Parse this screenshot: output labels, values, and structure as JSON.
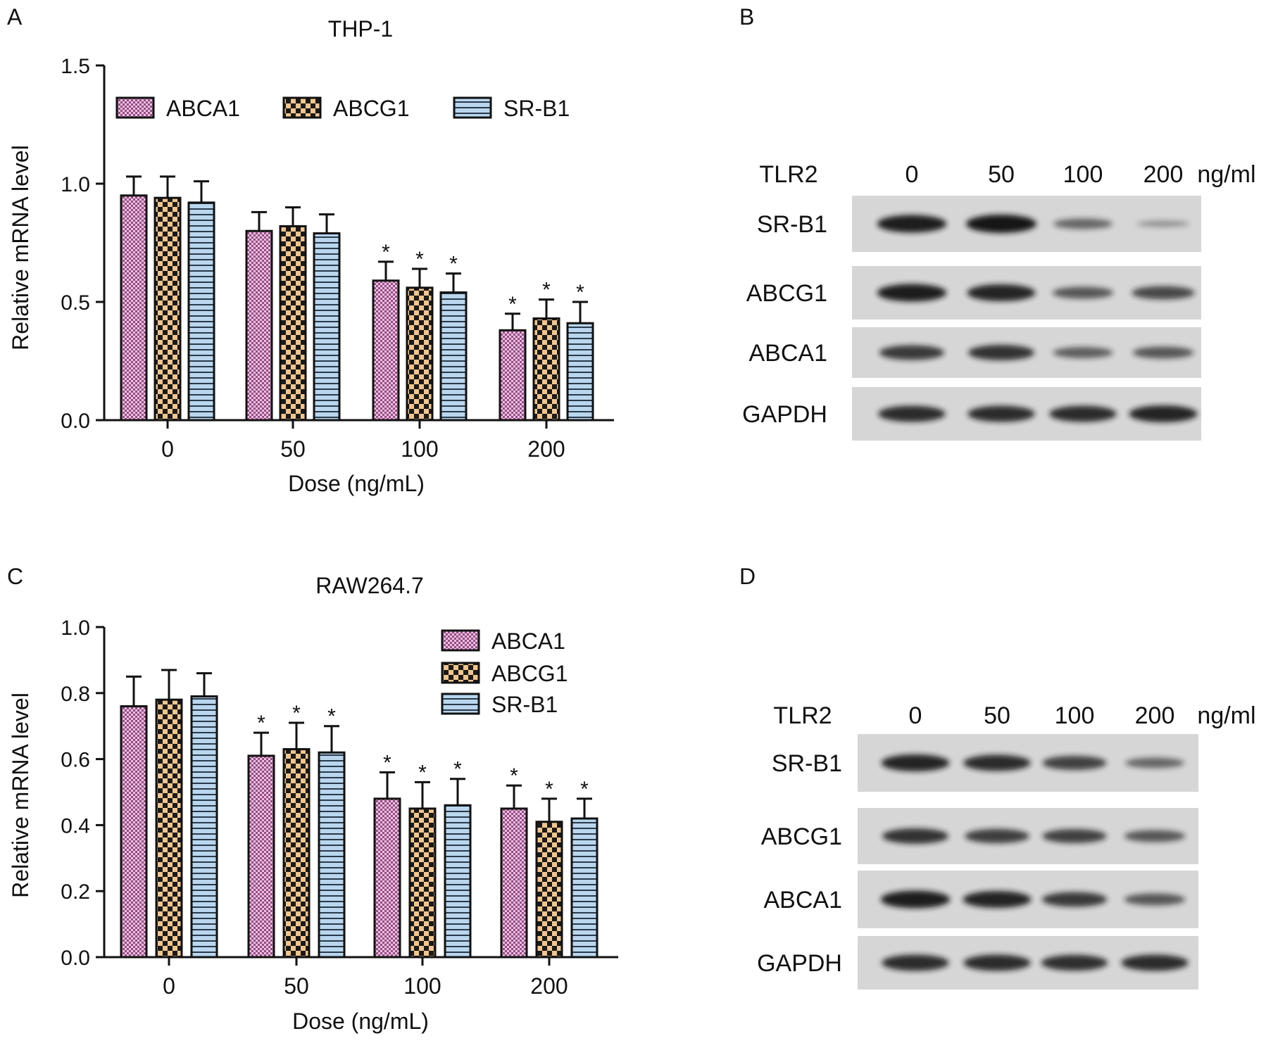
{
  "colors": {
    "ABCA1": "#9a4a86",
    "ABCG1": "#e9a95a",
    "SR-B1": "#a9cbe6"
  },
  "chart_data": [
    {
      "panel": "A",
      "type": "bar",
      "title": "THP-1",
      "xlabel": "Dose (ng/mL)",
      "ylabel": "Relative mRNA level",
      "categories": [
        "0",
        "50",
        "100",
        "200"
      ],
      "ylim": [
        0,
        1.5
      ],
      "yticks": [
        "0.0",
        "0.5",
        "1.0",
        "1.5"
      ],
      "legend_position": "top",
      "series": [
        {
          "name": "ABCA1",
          "values": [
            0.95,
            0.8,
            0.59,
            0.38
          ],
          "errors": [
            0.08,
            0.08,
            0.08,
            0.07
          ],
          "significant": [
            false,
            false,
            true,
            true
          ]
        },
        {
          "name": "ABCG1",
          "values": [
            0.94,
            0.82,
            0.56,
            0.43
          ],
          "errors": [
            0.09,
            0.08,
            0.08,
            0.08
          ],
          "significant": [
            false,
            false,
            true,
            true
          ]
        },
        {
          "name": "SR-B1",
          "values": [
            0.92,
            0.79,
            0.54,
            0.41
          ],
          "errors": [
            0.09,
            0.08,
            0.08,
            0.09
          ],
          "significant": [
            false,
            false,
            true,
            true
          ]
        }
      ],
      "marker": "*"
    },
    {
      "panel": "C",
      "type": "bar",
      "title": "RAW264.7",
      "xlabel": "Dose (ng/mL)",
      "ylabel": "Relative mRNA level",
      "categories": [
        "0",
        "50",
        "100",
        "200"
      ],
      "ylim": [
        0,
        1.0
      ],
      "yticks": [
        "0.0",
        "0.2",
        "0.4",
        "0.6",
        "0.8",
        "1.0"
      ],
      "legend_position": "top-right",
      "series": [
        {
          "name": "ABCA1",
          "values": [
            0.76,
            0.61,
            0.48,
            0.45
          ],
          "errors": [
            0.09,
            0.07,
            0.08,
            0.07
          ],
          "significant": [
            false,
            true,
            true,
            true
          ]
        },
        {
          "name": "ABCG1",
          "values": [
            0.78,
            0.63,
            0.45,
            0.41
          ],
          "errors": [
            0.09,
            0.08,
            0.08,
            0.07
          ],
          "significant": [
            false,
            true,
            true,
            true
          ]
        },
        {
          "name": "SR-B1",
          "values": [
            0.79,
            0.62,
            0.46,
            0.42
          ],
          "errors": [
            0.07,
            0.08,
            0.08,
            0.06
          ],
          "significant": [
            false,
            true,
            true,
            true
          ]
        }
      ],
      "marker": "*"
    }
  ],
  "blots": [
    {
      "panel": "B",
      "treatment": "TLR2",
      "doses": [
        "0",
        "50",
        "100",
        "200"
      ],
      "unit": "ng/ml",
      "rows": [
        {
          "label": "SR-B1",
          "intensity": [
            0.95,
            1.0,
            0.45,
            0.15
          ]
        },
        {
          "label": "ABCG1",
          "intensity": [
            0.95,
            0.9,
            0.55,
            0.65
          ]
        },
        {
          "label": "ABCA1",
          "intensity": [
            0.75,
            0.8,
            0.5,
            0.55
          ]
        },
        {
          "label": "GAPDH",
          "intensity": [
            0.85,
            0.85,
            0.85,
            0.9
          ]
        }
      ]
    },
    {
      "panel": "D",
      "treatment": "TLR2",
      "doses": [
        "0",
        "50",
        "100",
        "200"
      ],
      "unit": "ng/ml",
      "rows": [
        {
          "label": "SR-B1",
          "intensity": [
            0.9,
            0.85,
            0.7,
            0.45
          ]
        },
        {
          "label": "ABCG1",
          "intensity": [
            0.8,
            0.72,
            0.7,
            0.55
          ]
        },
        {
          "label": "ABCA1",
          "intensity": [
            0.95,
            0.9,
            0.75,
            0.55
          ]
        },
        {
          "label": "GAPDH",
          "intensity": [
            0.85,
            0.85,
            0.82,
            0.85
          ]
        }
      ]
    }
  ]
}
